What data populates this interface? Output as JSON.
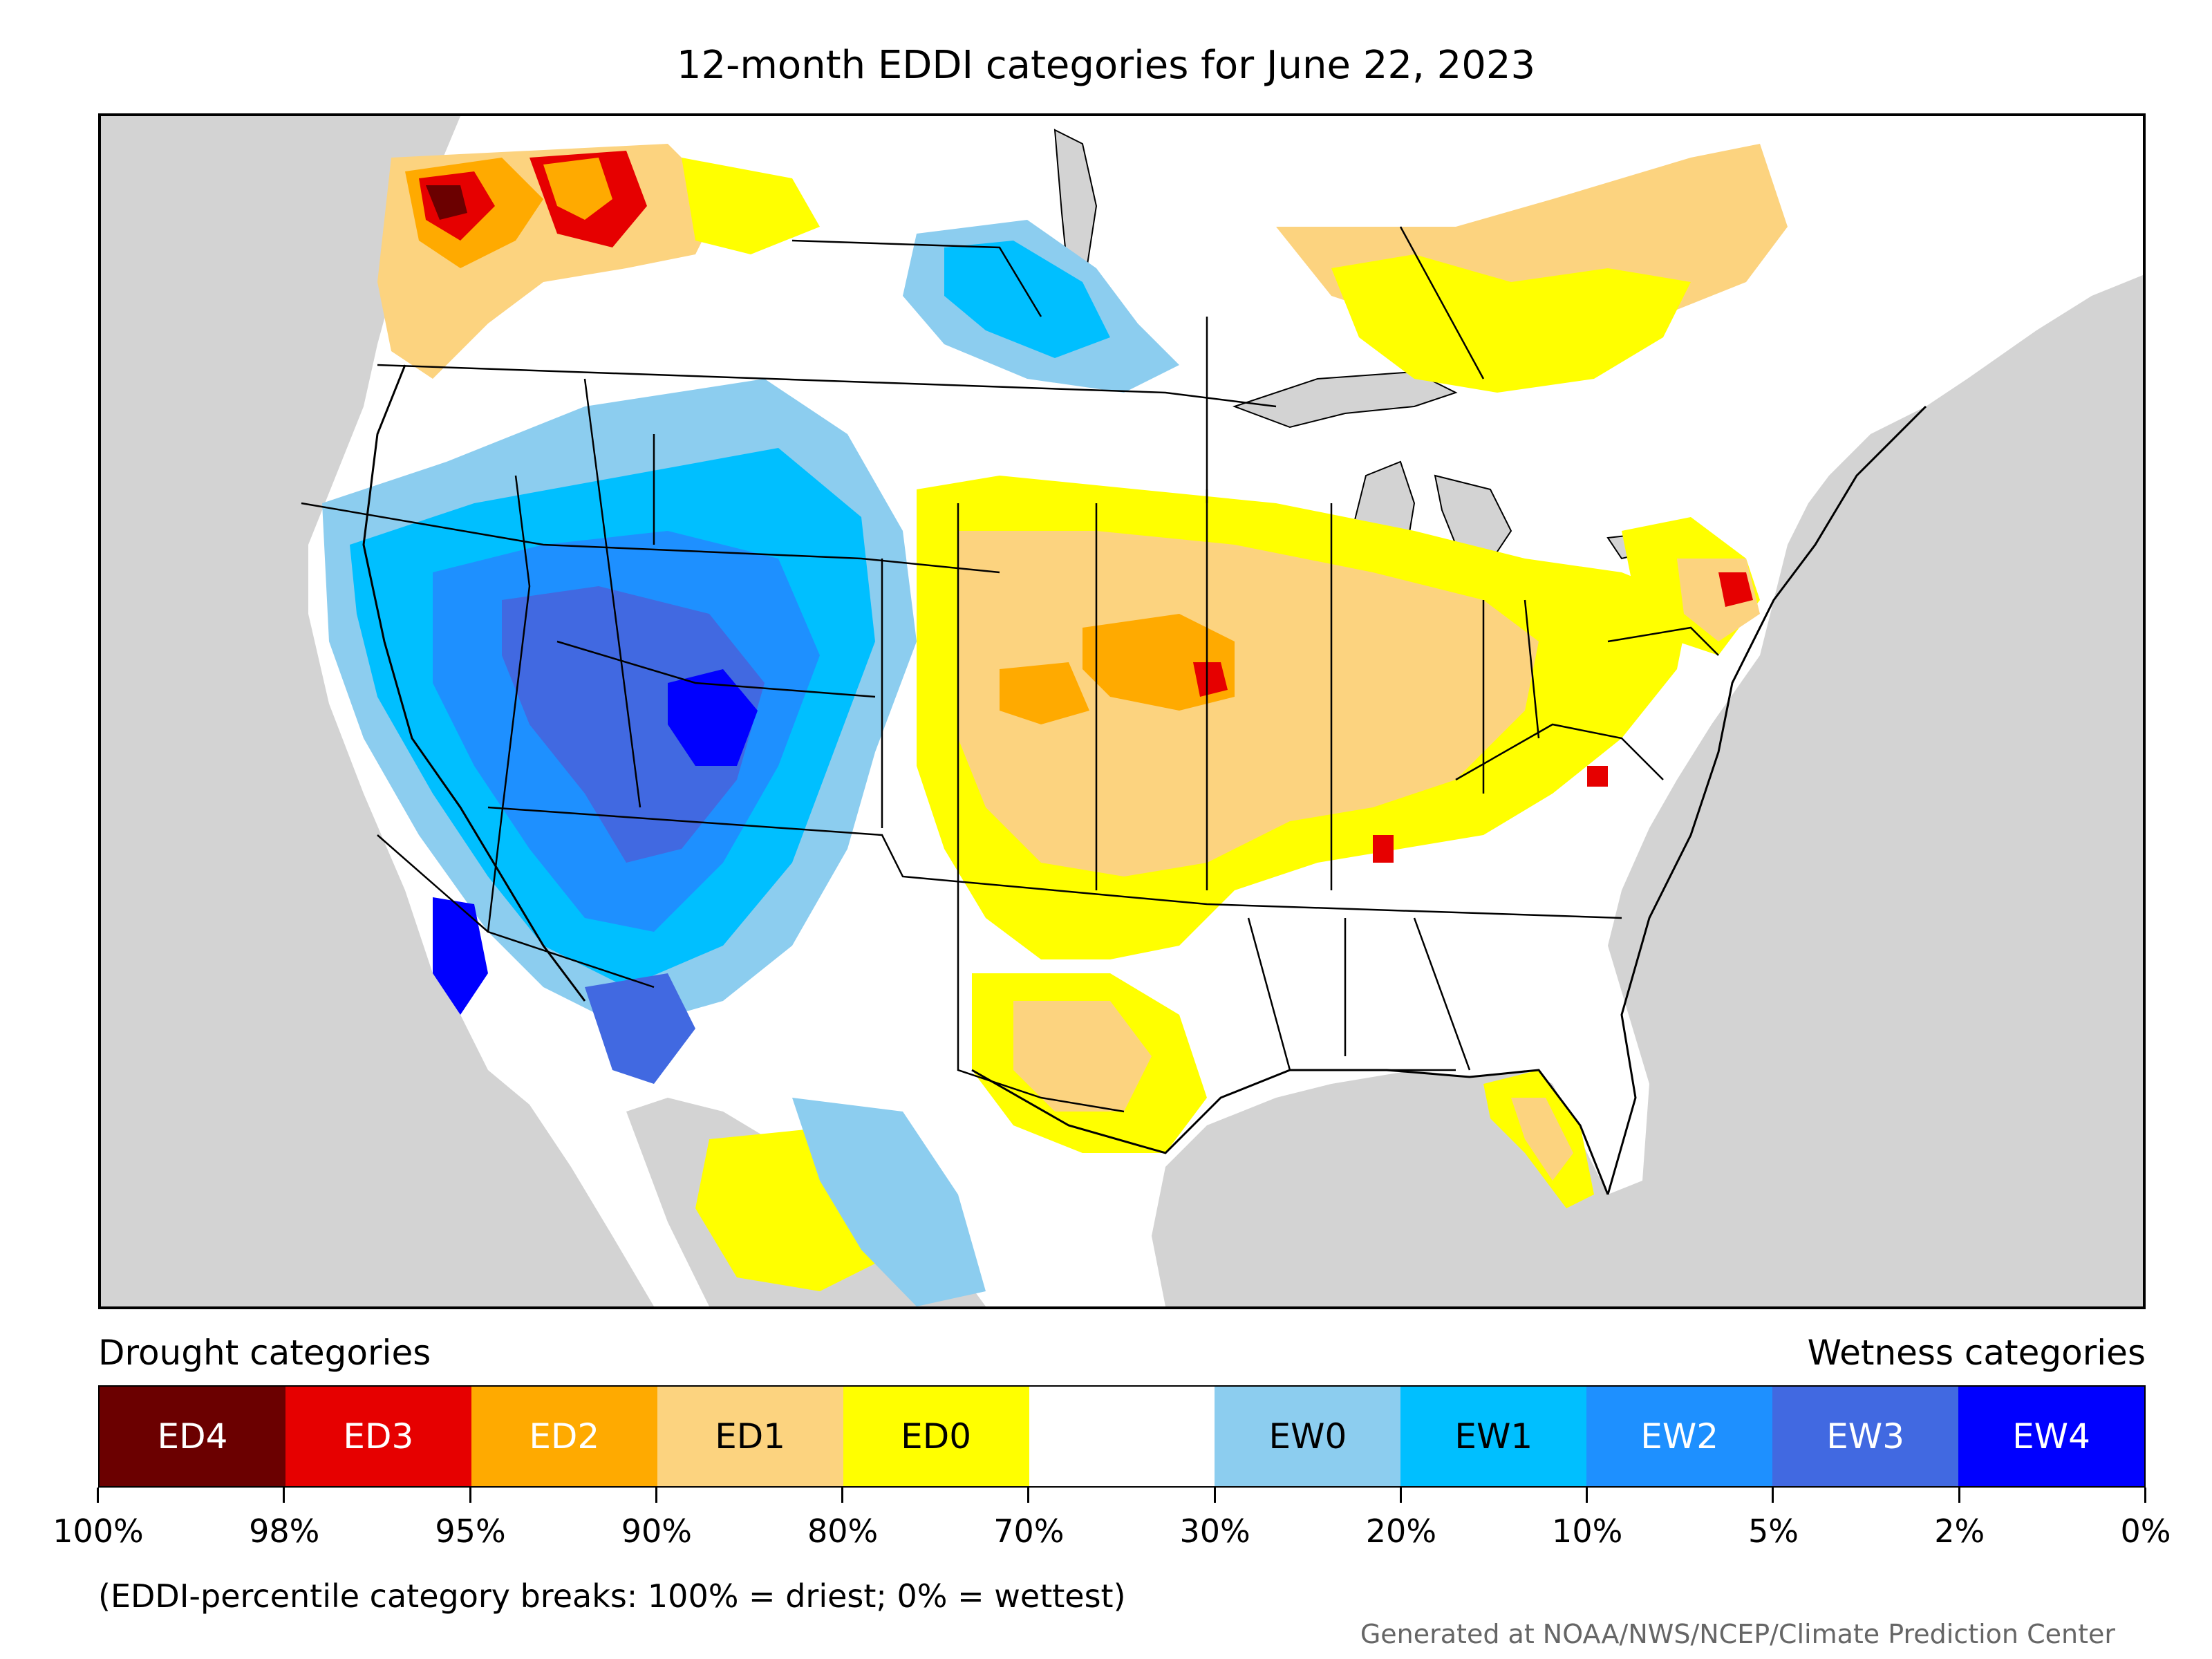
{
  "title": "12-month EDDI categories for June 22, 2023",
  "legend": {
    "drought_label": "Drought categories",
    "wetness_label": "Wetness categories",
    "categories": [
      {
        "label": "ED4",
        "color": "#6b0000",
        "text_color": "#ffffff"
      },
      {
        "label": "ED3",
        "color": "#e60000",
        "text_color": "#ffffff"
      },
      {
        "label": "ED2",
        "color": "#ffaa00",
        "text_color": "#ffffff"
      },
      {
        "label": "ED1",
        "color": "#fcd37f",
        "text_color": "#000000"
      },
      {
        "label": "ED0",
        "color": "#ffff00",
        "text_color": "#000000"
      },
      {
        "label": "",
        "color": "#ffffff",
        "text_color": "#000000"
      },
      {
        "label": "EW0",
        "color": "#8ccdef",
        "text_color": "#000000"
      },
      {
        "label": "EW1",
        "color": "#00bfff",
        "text_color": "#000000"
      },
      {
        "label": "EW2",
        "color": "#1e90ff",
        "text_color": "#ffffff"
      },
      {
        "label": "EW3",
        "color": "#4169e1",
        "text_color": "#ffffff"
      },
      {
        "label": "EW4",
        "color": "#0000ff",
        "text_color": "#ffffff"
      }
    ],
    "ticks": [
      "100%",
      "98%",
      "95%",
      "90%",
      "80%",
      "70%",
      "30%",
      "20%",
      "10%",
      "5%",
      "2%",
      "0%"
    ]
  },
  "note": "(EDDI-percentile category breaks: 100% = driest; 0% = wettest)",
  "credit": "Generated at NOAA/NWS/NCEP/Climate Prediction Center",
  "map": {
    "background_color": "#d3d3d3",
    "land_color": "#ffffff",
    "border_color": "#000000"
  }
}
